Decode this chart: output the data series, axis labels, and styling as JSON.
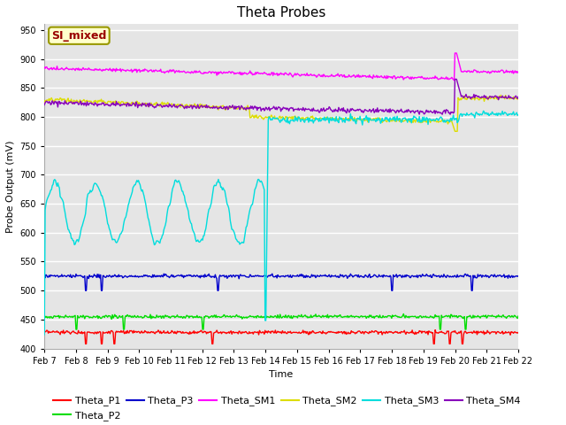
{
  "title": "Theta Probes",
  "xlabel": "Time",
  "ylabel": "Probe Output (mV)",
  "ylim": [
    400,
    960
  ],
  "yticks": [
    400,
    450,
    500,
    550,
    600,
    650,
    700,
    750,
    800,
    850,
    900,
    950
  ],
  "date_labels": [
    "Feb 7",
    "Feb 8",
    "Feb 9",
    "Feb 10",
    "Feb 11",
    "Feb 12",
    "Feb 13",
    "Feb 14",
    "Feb 15",
    "Feb 16",
    "Feb 17",
    "Feb 18",
    "Feb 19",
    "Feb 20",
    "Feb 21",
    "Feb 22"
  ],
  "n_ticks": 16,
  "colors": {
    "Theta_P1": "#ff0000",
    "Theta_P2": "#00dd00",
    "Theta_P3": "#0000cc",
    "Theta_SM1": "#ff00ff",
    "Theta_SM2": "#dddd00",
    "Theta_SM3": "#00dddd",
    "Theta_SM4": "#8800bb"
  },
  "annotation_text": "SI_mixed",
  "annotation_color": "#990000",
  "annotation_bg": "#ffffcc",
  "annotation_border": "#999900",
  "background_color": "#e5e5e5",
  "title_fontsize": 11,
  "axis_fontsize": 8,
  "tick_fontsize": 7,
  "legend_fontsize": 8
}
